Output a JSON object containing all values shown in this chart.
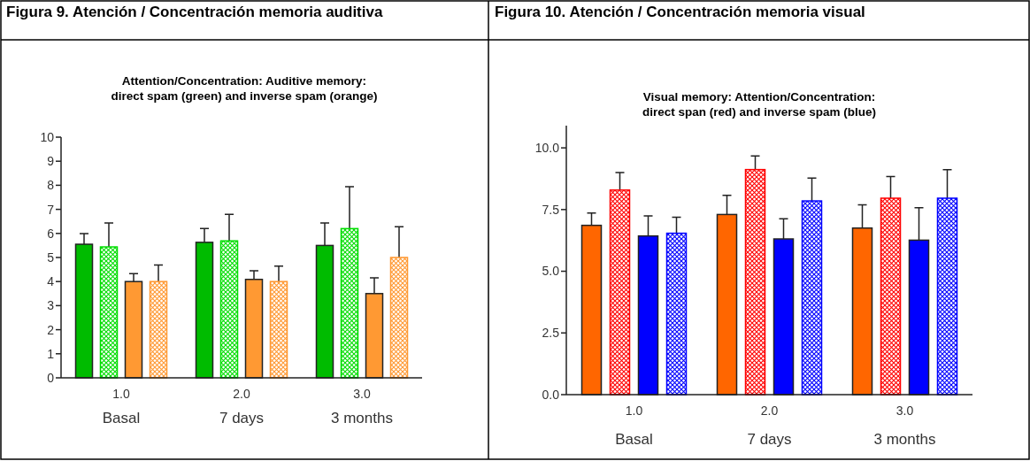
{
  "chart_data": [
    {
      "type": "bar",
      "title": "Figura 9. Atención / Concentración memoria auditiva",
      "subtitle": "Attention/Concentration: Auditive memory:\ndirect spam (green) and inverse spam (orange)",
      "categories": [
        "1.0",
        "2.0",
        "3.0"
      ],
      "ylim": [
        0,
        10
      ],
      "yticks": [
        0,
        1,
        2,
        3,
        4,
        5,
        6,
        7,
        8,
        9,
        10
      ],
      "annotations": [
        "Basal",
        "7 days",
        "3 months"
      ],
      "series": [
        {
          "color": "#00bb00",
          "values": [
            5.55,
            5.63,
            5.5
          ],
          "errors": [
            [
              5.55,
              5.99
            ],
            [
              5.63,
              6.2
            ],
            [
              5.5,
              6.43
            ]
          ]
        },
        {
          "color": "#00dd00",
          "values": [
            5.44,
            5.69,
            6.2
          ],
          "errors": [
            [
              5.44,
              6.43
            ],
            [
              5.69,
              6.79
            ],
            [
              6.2,
              7.94
            ]
          ]
        },
        {
          "color": "#ff9933",
          "values": [
            4.0,
            4.09,
            3.5
          ],
          "errors": [
            [
              4.0,
              4.33
            ],
            [
              4.09,
              4.45
            ],
            [
              3.5,
              4.15
            ]
          ]
        },
        {
          "color": "#ff9933",
          "values": [
            4.0,
            4.0,
            5.0
          ],
          "errors": [
            [
              4.0,
              4.69
            ],
            [
              4.0,
              4.64
            ],
            [
              5.0,
              6.28
            ]
          ]
        }
      ]
    },
    {
      "type": "bar",
      "title": "Figura 10. Atención / Concentración memoria visual",
      "subtitle": "Visual memory: Attention/Concentration:\ndirect span (red) and inverse spam (blue)",
      "categories": [
        "1.0",
        "2.0",
        "3.0"
      ],
      "ylim": [
        0,
        10.9
      ],
      "yticks": [
        {
          "value": 0,
          "label": "0.0"
        },
        {
          "value": 2.5,
          "label": "2.5"
        },
        {
          "value": 5,
          "label": "5.0"
        },
        {
          "value": 7.5,
          "label": "7.5"
        },
        {
          "value": 10,
          "label": "10.0"
        }
      ],
      "annotations": [
        "Basal",
        "7 days",
        "3 months"
      ],
      "series": [
        {
          "color": "#ff6600",
          "values": [
            6.86,
            7.3,
            6.75
          ],
          "errors": [
            [
              6.86,
              7.36
            ],
            [
              7.3,
              8.08
            ],
            [
              6.75,
              7.69
            ]
          ]
        },
        {
          "color": "#ff0000",
          "values": [
            8.29,
            9.12,
            7.96
          ],
          "errors": [
            [
              8.29,
              9.0
            ],
            [
              9.12,
              9.67
            ],
            [
              7.96,
              8.84
            ]
          ]
        },
        {
          "color": "#0000ff",
          "values": [
            6.43,
            6.31,
            6.26
          ],
          "errors": [
            [
              6.43,
              7.24
            ],
            [
              6.31,
              7.13
            ],
            [
              6.26,
              7.57
            ]
          ]
        },
        {
          "color": "#0000ff",
          "values": [
            6.54,
            7.85,
            7.96
          ],
          "errors": [
            [
              6.54,
              7.19
            ],
            [
              7.85,
              8.78
            ],
            [
              7.96,
              9.12
            ]
          ]
        }
      ]
    }
  ]
}
